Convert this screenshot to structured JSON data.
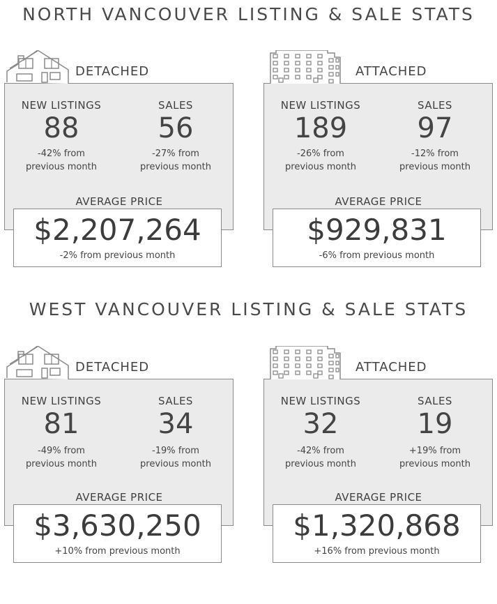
{
  "north": {
    "title": "NORTH VANCOUVER LISTING & SALE STATS",
    "detached": {
      "label": "DETACHED",
      "new_listings_label": "NEW LISTINGS",
      "new_listings": "88",
      "new_listings_change_1": "-42% from",
      "new_listings_change_2": "previous month",
      "sales_label": "SALES",
      "sales": "56",
      "sales_change_1": "-27% from",
      "sales_change_2": "previous month",
      "avg_label": "AVERAGE PRICE",
      "avg_price": "$2,207,264",
      "avg_change": "-2% from previous month"
    },
    "attached": {
      "label": "ATTACHED",
      "new_listings_label": "NEW LISTINGS",
      "new_listings": "189",
      "new_listings_change_1": "-26% from",
      "new_listings_change_2": "previous month",
      "sales_label": "SALES",
      "sales": "97",
      "sales_change_1": "-12% from",
      "sales_change_2": "previous month",
      "avg_label": "AVERAGE PRICE",
      "avg_price": "$929,831",
      "avg_change": "-6% from previous month"
    }
  },
  "west": {
    "title": "WEST VANCOUVER LISTING & SALE STATS",
    "detached": {
      "label": "DETACHED",
      "new_listings_label": "NEW LISTINGS",
      "new_listings": "81",
      "new_listings_change_1": "-49% from",
      "new_listings_change_2": "previous month",
      "sales_label": "SALES",
      "sales": "34",
      "sales_change_1": "-19% from",
      "sales_change_2": "previous month",
      "avg_label": "AVERAGE PRICE",
      "avg_price": "$3,630,250",
      "avg_change": "+10% from previous month"
    },
    "attached": {
      "label": "ATTACHED",
      "new_listings_label": "NEW LISTINGS",
      "new_listings": "32",
      "new_listings_change_1": "-42% from",
      "new_listings_change_2": "previous month",
      "sales_label": "SALES",
      "sales": "19",
      "sales_change_1": "+19% from",
      "sales_change_2": "previous month",
      "avg_label": "AVERAGE PRICE",
      "avg_price": "$1,320,868",
      "avg_change": "+16% from previous month"
    }
  },
  "icons": {
    "detached": "house-icon",
    "attached": "apartment-building-icon"
  },
  "colors": {
    "panel": "#ebebeb",
    "border": "#8a8a8a",
    "text": "#444444"
  }
}
